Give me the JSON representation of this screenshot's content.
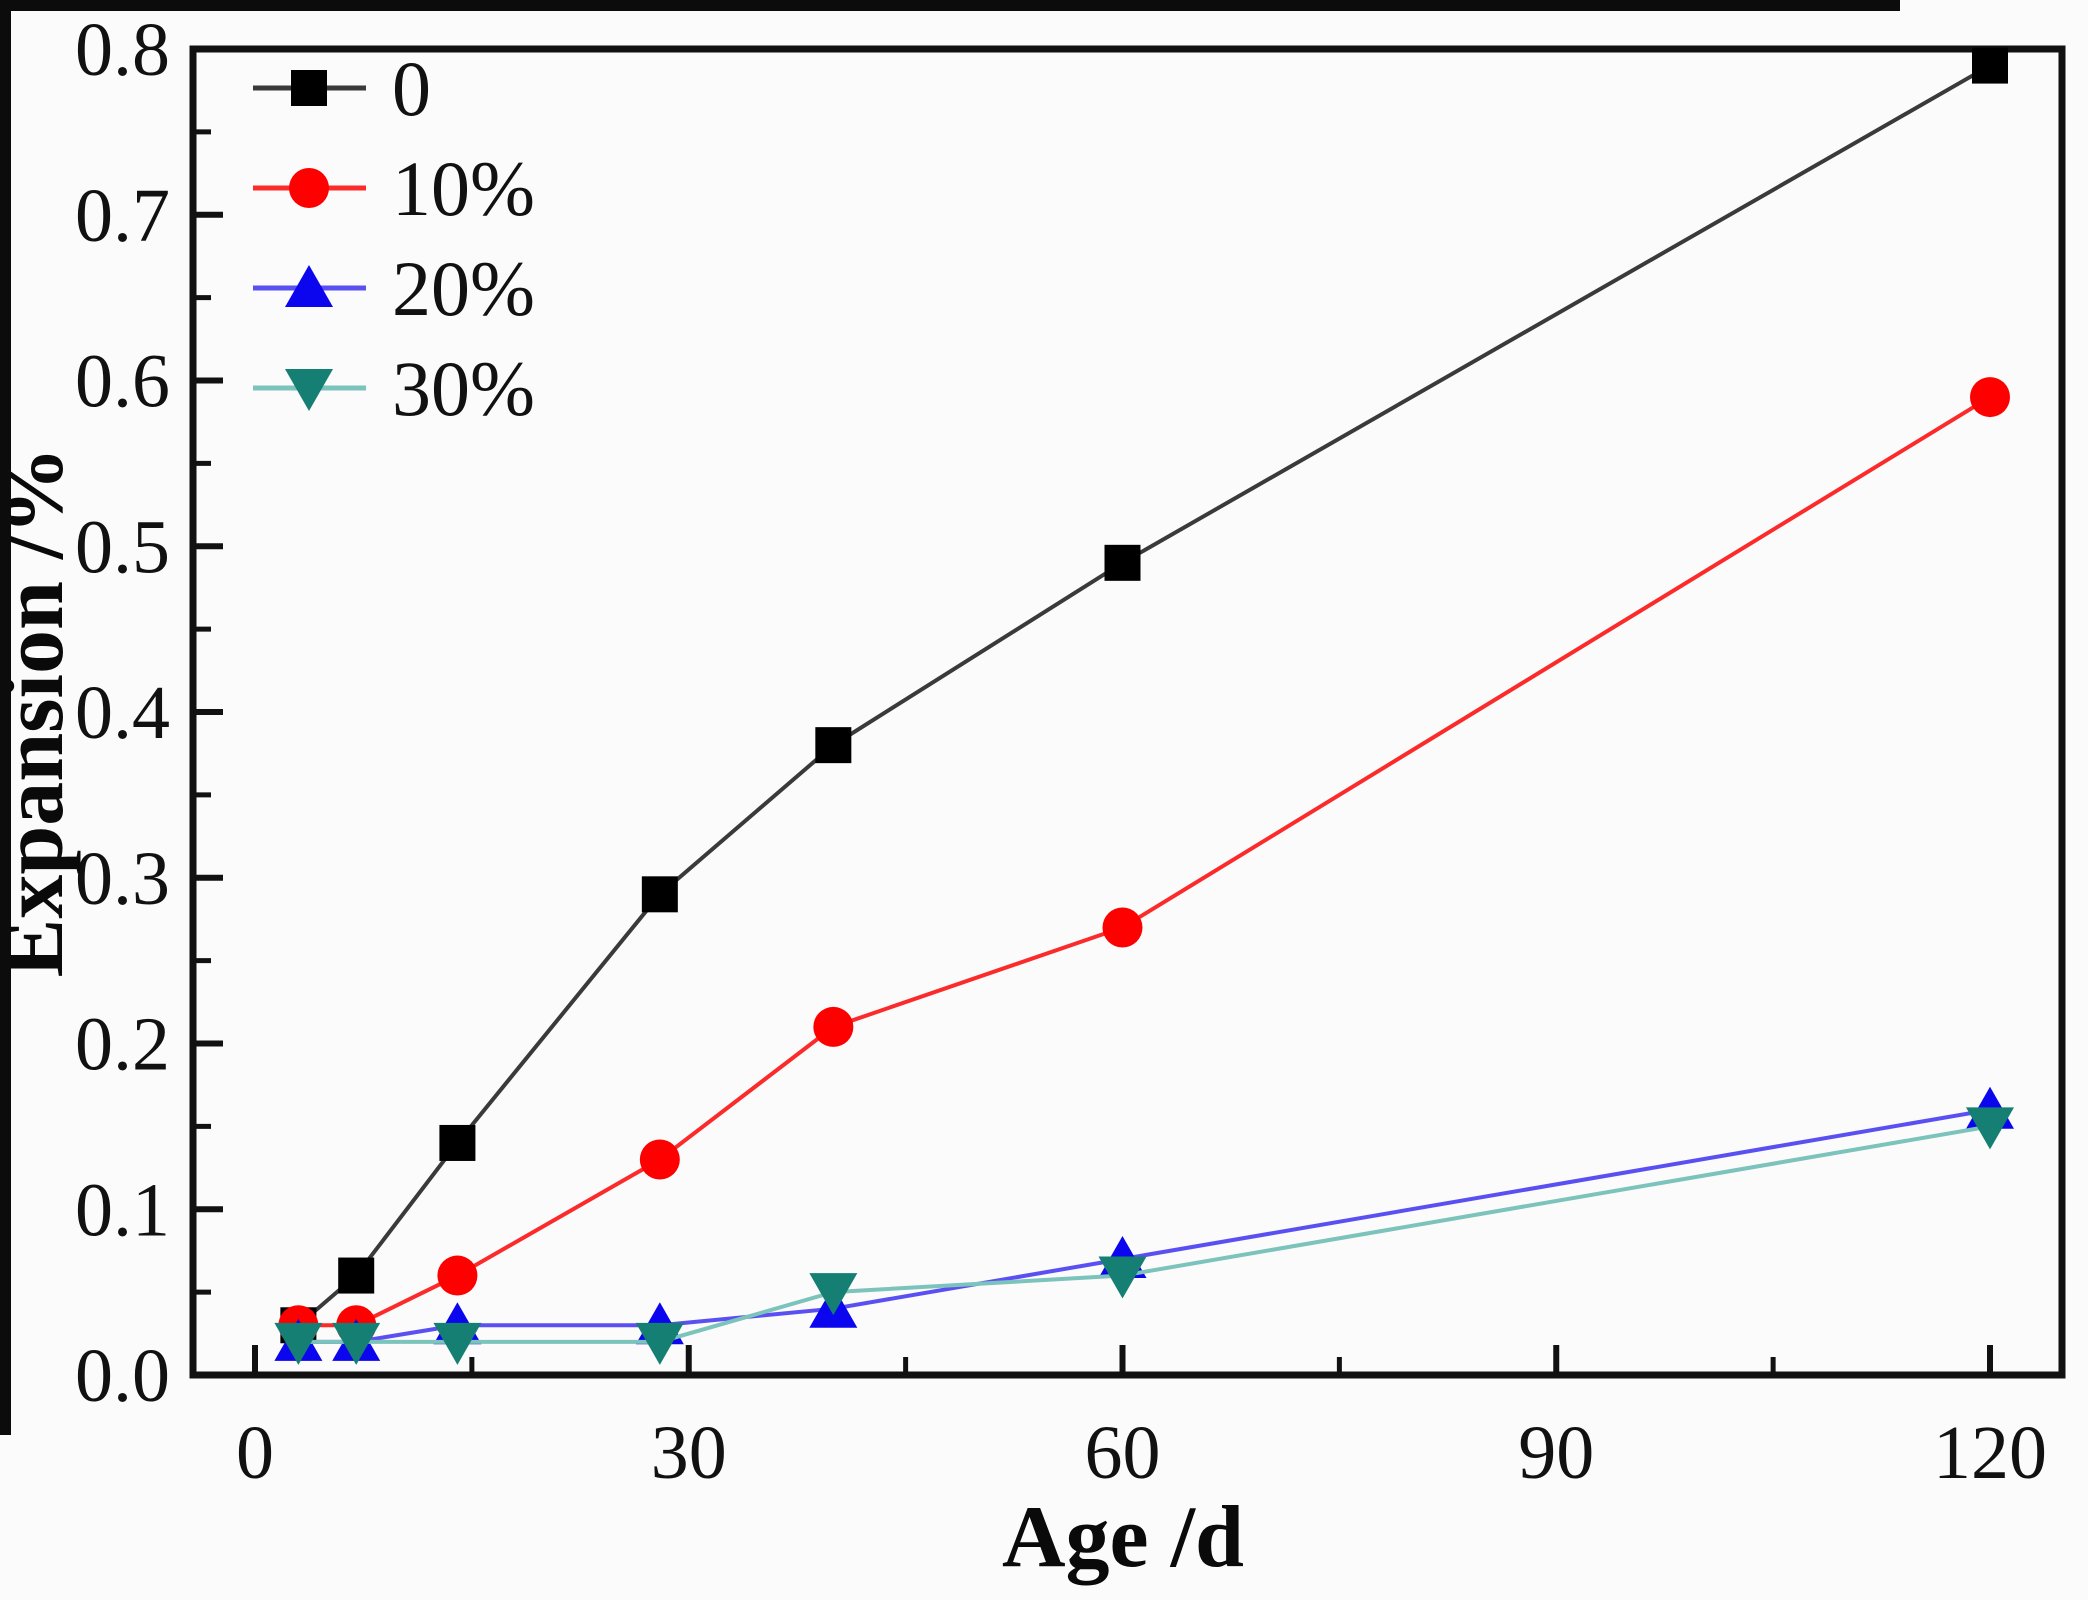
{
  "figure": {
    "background": "#fbfbfb",
    "frame_color": "#111111",
    "scan_border_color": "#0c0c0c"
  },
  "chart_data": {
    "type": "line",
    "title": "",
    "xlabel": "Age /d",
    "ylabel": "Expansion /%",
    "grid": false,
    "legend_position": "top-left-inside",
    "xlim": [
      -4.3,
      125
    ],
    "ylim": [
      0,
      0.8
    ],
    "x_major_ticks": [
      0,
      30,
      60,
      90,
      120
    ],
    "x_major_tick_labels": [
      "0",
      "30",
      "60",
      "90",
      "120"
    ],
    "x_minor_ticks": [
      15,
      45,
      75,
      105
    ],
    "y_major_ticks": [
      0.0,
      0.1,
      0.2,
      0.3,
      0.4,
      0.5,
      0.6,
      0.7,
      0.8
    ],
    "y_major_tick_labels": [
      "0.0",
      "0.1",
      "0.2",
      "0.3",
      "0.4",
      "0.5",
      "0.6",
      "0.7",
      "0.8"
    ],
    "y_minor_ticks": [
      0.05,
      0.15,
      0.25,
      0.35,
      0.45,
      0.55,
      0.65,
      0.75
    ],
    "x": [
      3,
      7,
      14,
      28,
      40,
      60,
      120
    ],
    "series": [
      {
        "name": "0",
        "marker": "square",
        "marker_color": "#000000",
        "line_color": "#3a3a3a",
        "values": [
          0.03,
          0.06,
          0.14,
          0.29,
          0.38,
          0.49,
          0.79
        ]
      },
      {
        "name": "10%",
        "marker": "circle",
        "marker_color": "#fe0000",
        "line_color": "#fb2b2b",
        "values": [
          0.03,
          0.03,
          0.06,
          0.13,
          0.21,
          0.27,
          0.59
        ]
      },
      {
        "name": "20%",
        "marker": "triangle-up",
        "marker_color": "#0b06ee",
        "line_color": "#5a50f2",
        "values": [
          0.02,
          0.02,
          0.03,
          0.03,
          0.04,
          0.07,
          0.16
        ]
      },
      {
        "name": "30%",
        "marker": "triangle-down",
        "marker_color": "#147f72",
        "line_color": "#7cc3bc",
        "values": [
          0.02,
          0.02,
          0.02,
          0.02,
          0.05,
          0.06,
          0.15
        ]
      }
    ]
  }
}
